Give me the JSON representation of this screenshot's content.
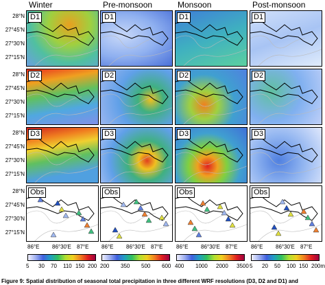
{
  "columns": [
    "Winter",
    "Pre-monsoon",
    "Monsoon",
    "Post-monsoon"
  ],
  "rows": [
    "D1",
    "D2",
    "D3",
    "Obs"
  ],
  "lat_labels": [
    "28°N",
    "27°45'N",
    "27°30'N",
    "27°15'N"
  ],
  "lon_labels": [
    "86°E",
    "86°30'E",
    "87°E"
  ],
  "colorbars": [
    [
      "5",
      "30",
      "70",
      "110",
      "150",
      "200"
    ],
    [
      "200",
      "350",
      "500",
      "600"
    ],
    [
      "400",
      "1000",
      "2000",
      "3500"
    ],
    [
      "5",
      "20",
      "50",
      "100",
      "150",
      "200mm"
    ]
  ],
  "caption": "Figure 9: Spatial distribution of seasonal total precipitation in three different WRF resolutions (D3, D2 and D1) and"
}
